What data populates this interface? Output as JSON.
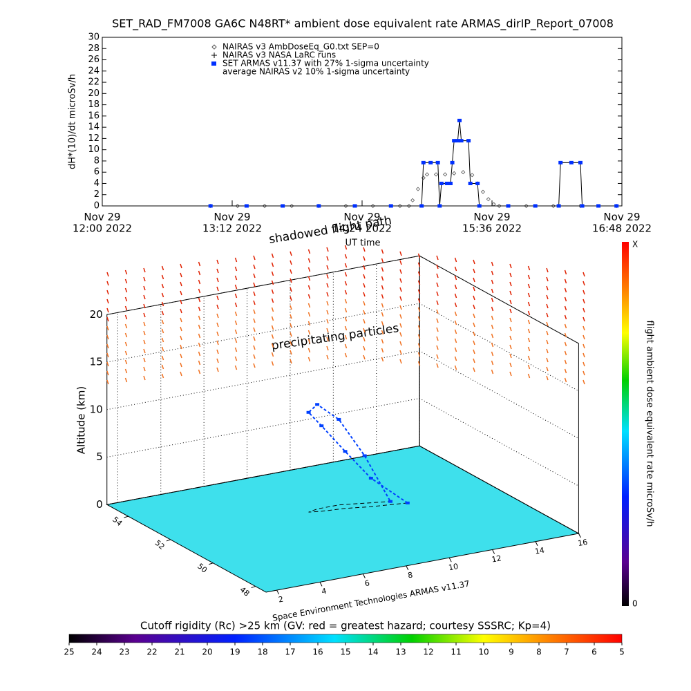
{
  "chart_data": [
    {
      "type": "line",
      "title": "SET_RAD_FM7008  GA6C N48RT* ambient dose equivalent rate ARMAS_dirIP_Report_07008",
      "y_label": "dH*(10)/dt microSv/h",
      "x_label": "UT time",
      "xlim": [
        "2022-11-29 12:00",
        "2022-11-29 16:48"
      ],
      "xticks": [
        {
          "value": "2022-11-29 12:00",
          "label": "Nov 29\n12:00 2022"
        },
        {
          "value": "2022-11-29 13:12",
          "label": "Nov 29\n13:12 2022"
        },
        {
          "value": "2022-11-29 14:24",
          "label": "Nov 29\n14:24 2022"
        },
        {
          "value": "2022-11-29 15:36",
          "label": "Nov 29\n15:36 2022"
        },
        {
          "value": "2022-11-29 16:48",
          "label": "Nov 29\n16:48 2022"
        }
      ],
      "ylim": [
        0,
        30
      ],
      "yticks": [
        0,
        2,
        4,
        6,
        8,
        10,
        12,
        14,
        16,
        18,
        20,
        22,
        24,
        26,
        28,
        30
      ],
      "series": [
        {
          "name": "NAIRAS v3 AmbDoseEq_G0.txt SEP=0",
          "marker": "diamond",
          "color": "#555555",
          "x": [
            "2022-11-29 13:00",
            "2022-11-29 13:15",
            "2022-11-29 13:30",
            "2022-11-29 13:45",
            "2022-11-29 14:00",
            "2022-11-29 14:15",
            "2022-11-29 14:30",
            "2022-11-29 14:45",
            "2022-11-29 14:50",
            "2022-11-29 14:52",
            "2022-11-29 14:55",
            "2022-11-29 14:58",
            "2022-11-29 15:00",
            "2022-11-29 15:05",
            "2022-11-29 15:10",
            "2022-11-29 15:15",
            "2022-11-29 15:20",
            "2022-11-29 15:25",
            "2022-11-29 15:28",
            "2022-11-29 15:31",
            "2022-11-29 15:34",
            "2022-11-29 15:37",
            "2022-11-29 15:40",
            "2022-11-29 15:55",
            "2022-11-29 16:10",
            "2022-11-29 16:25",
            "2022-11-29 16:45"
          ],
          "values": [
            0,
            0,
            0,
            0,
            0,
            0,
            0,
            0,
            0,
            1,
            3,
            5,
            5.6,
            5.6,
            5.6,
            5.8,
            6,
            5.5,
            4,
            2.5,
            1.2,
            0.3,
            0,
            0,
            0,
            0,
            0
          ]
        },
        {
          "name": "NAIRAS v3 NASA LaRC runs",
          "marker": "plus",
          "color": "#000000",
          "x": [],
          "values": []
        },
        {
          "name": "SET ARMAS v11.37 with 27% 1-sigma uncertainty",
          "marker": "square",
          "color": "#0030ff",
          "x": [
            "2022-11-29 13:00",
            "2022-11-29 13:20",
            "2022-11-29 13:40",
            "2022-11-29 14:00",
            "2022-11-29 14:20",
            "2022-11-29 14:40",
            "2022-11-29 14:57",
            "2022-11-29 14:58",
            "2022-11-29 15:02",
            "2022-11-29 15:06",
            "2022-11-29 15:07",
            "2022-11-29 15:08",
            "2022-11-29 15:11",
            "2022-11-29 15:13",
            "2022-11-29 15:14",
            "2022-11-29 15:15",
            "2022-11-29 15:17",
            "2022-11-29 15:18",
            "2022-11-29 15:19",
            "2022-11-29 15:23",
            "2022-11-29 15:24",
            "2022-11-29 15:28",
            "2022-11-29 15:29",
            "2022-11-29 15:45",
            "2022-11-29 16:00",
            "2022-11-29 16:13",
            "2022-11-29 16:14",
            "2022-11-29 16:20",
            "2022-11-29 16:25",
            "2022-11-29 16:26",
            "2022-11-29 16:35",
            "2022-11-29 16:45"
          ],
          "values": [
            0,
            0,
            0,
            0,
            0,
            0,
            0,
            7.7,
            7.7,
            7.7,
            0,
            4,
            4,
            4,
            7.7,
            11.6,
            11.6,
            15.2,
            11.6,
            11.6,
            4,
            4,
            0,
            0,
            0,
            0,
            7.7,
            7.7,
            7.7,
            0,
            0,
            0
          ]
        },
        {
          "name": "average NAIRAS v2 10% 1-sigma uncertainty",
          "marker": "none",
          "color": "#000000",
          "x": [],
          "values": []
        }
      ]
    },
    {
      "type": "scatter3d",
      "z_label": "Altitude (km)",
      "annotations": [
        "shadowed flight path",
        "precipitating particles"
      ],
      "credit": "Space Environment Technologies ARMAS v11.37",
      "xlim": [
        1.5,
        16
      ],
      "xticks": [
        2,
        4,
        6,
        8,
        10,
        12,
        14,
        16
      ],
      "ylim": [
        47.5,
        55
      ],
      "yticks": [
        48,
        50,
        52,
        54
      ],
      "zlim": [
        0,
        20
      ],
      "zticks": [
        0,
        5,
        10,
        15,
        20
      ],
      "series": [
        {
          "color": "#0040ff",
          "x": [
            12,
            10.5,
            9.5,
            8.5,
            8,
            8.5,
            9.5,
            10.5,
            11.5
          ],
          "y": [
            51.5,
            51.7,
            51.9,
            52,
            52.1,
            52.2,
            52.2,
            52,
            51.8
          ],
          "values": [
            0,
            3,
            6,
            9,
            10.5,
            11,
            9,
            5,
            0
          ]
        }
      ]
    },
    {
      "type": "colorbar",
      "orientation": "vertical",
      "title": "flight ambient dose equivalent rate microSv/h",
      "ticks": [
        0,
        "X"
      ]
    },
    {
      "type": "colorbar",
      "orientation": "horizontal",
      "title": "Cutoff rigidity (Rc) >25 km (GV: red = greatest hazard; courtesy SSSRC; Kp=4)",
      "xlim": [
        25,
        5
      ],
      "xticks": [
        25,
        24,
        23,
        22,
        21,
        20,
        19,
        18,
        17,
        16,
        15,
        14,
        13,
        12,
        11,
        10,
        9,
        8,
        7,
        6,
        5
      ]
    }
  ]
}
